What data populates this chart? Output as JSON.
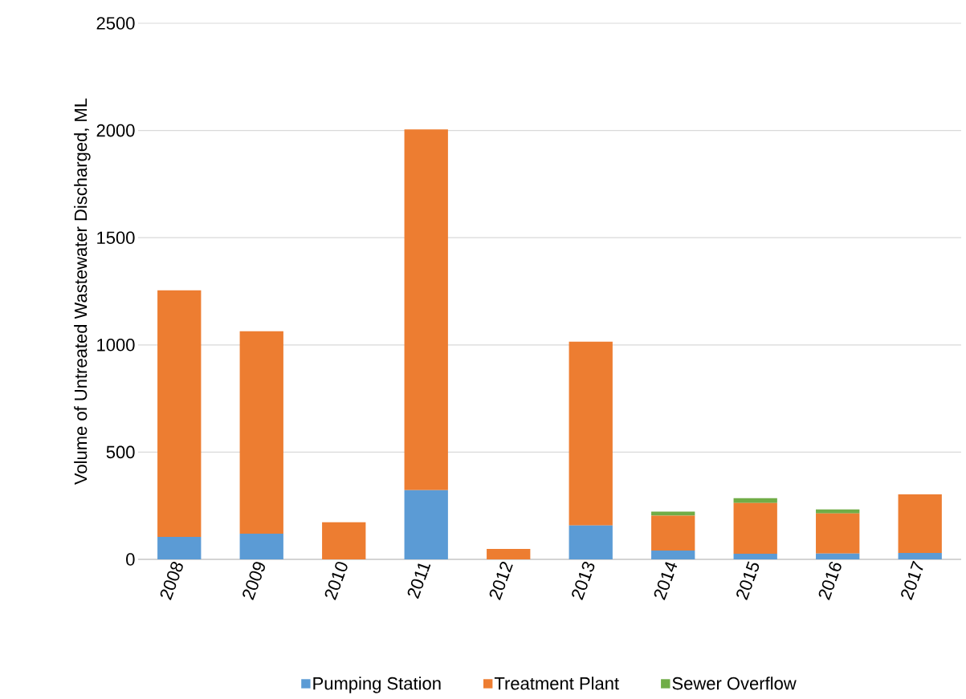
{
  "chart_data": {
    "type": "bar",
    "stacked": true,
    "ylabel": "Volume of Untreated Wastewater Discharged, ML",
    "categories": [
      "2008",
      "2009",
      "2010",
      "2011",
      "2012",
      "2013",
      "2014",
      "2015",
      "2016",
      "2017"
    ],
    "series": [
      {
        "name": "Pumping Station",
        "color": "#5b9bd5",
        "values": [
          105,
          120,
          0,
          323,
          0,
          158,
          41,
          26,
          27,
          30
        ]
      },
      {
        "name": "Treatment Plant",
        "color": "#ed7d31",
        "values": [
          1150,
          944,
          173,
          1682,
          49,
          857,
          163,
          237,
          187,
          273
        ]
      },
      {
        "name": "Sewer Overflow",
        "color": "#70ad47",
        "values": [
          0,
          0,
          0,
          0,
          0,
          0,
          19,
          22,
          19,
          0
        ]
      }
    ],
    "ylim": [
      0,
      2500
    ],
    "yticks": [
      0,
      500,
      1000,
      1500,
      2000,
      2500
    ],
    "grid": "y",
    "legend": "bottom"
  }
}
